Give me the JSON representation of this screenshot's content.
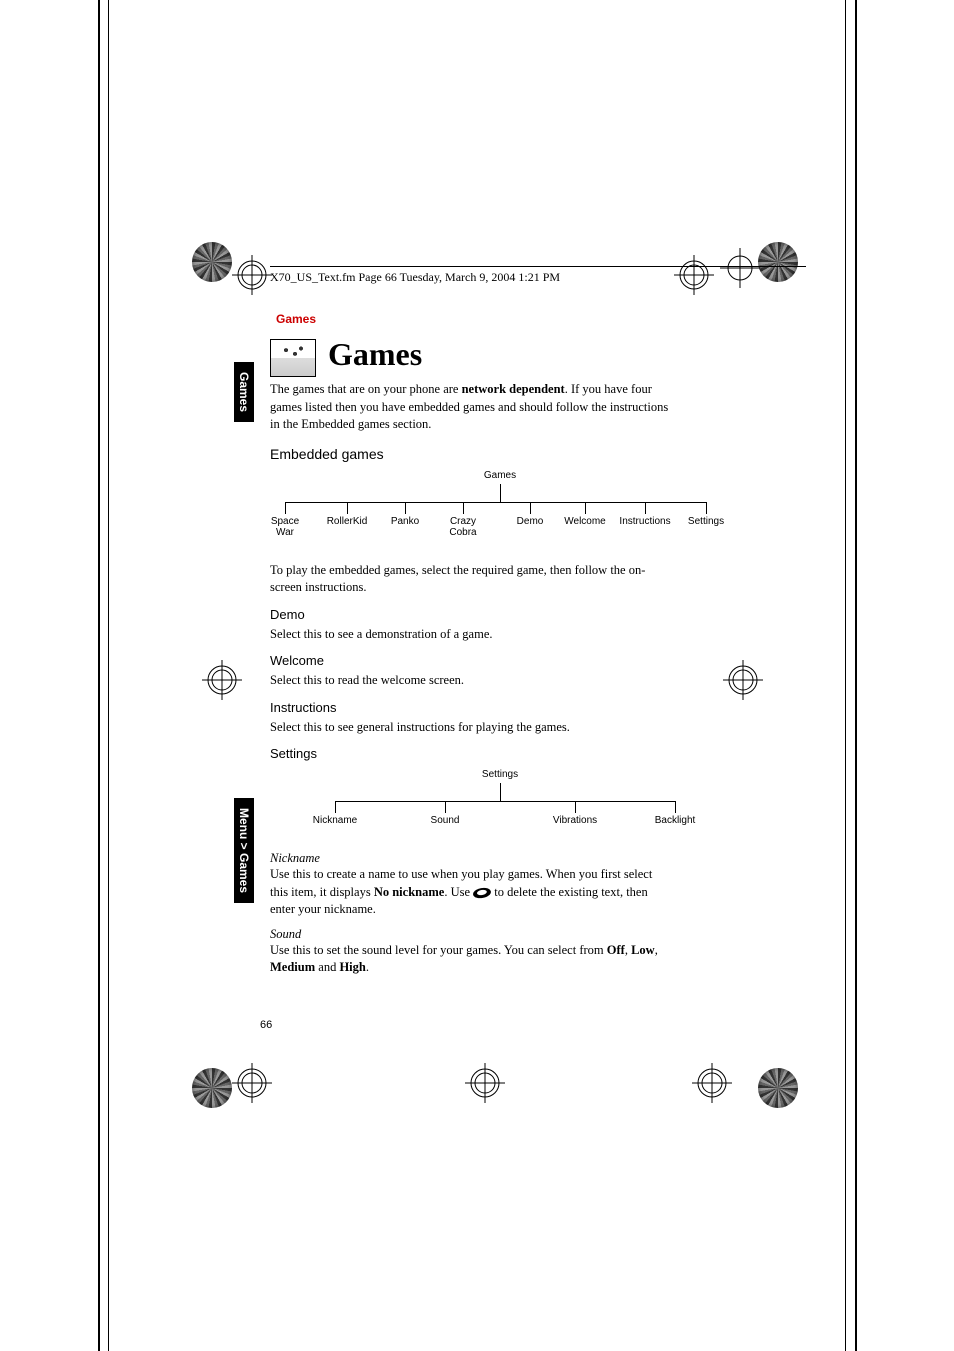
{
  "header": {
    "running_text": "X70_US_Text.fm  Page 66  Tuesday, March 9, 2004  1:21 PM",
    "section_label": "Games"
  },
  "sidebar": {
    "tab1": "Games",
    "tab2": "Menu > Games"
  },
  "chapter": {
    "title": "Games",
    "intro_line1": "The games that are on your phone are ",
    "intro_bold1": "network dependent",
    "intro_line1b": ". If you have four games listed then you have embedded games and should follow the instructions in the Embedded games section."
  },
  "embedded": {
    "heading": "Embedded games",
    "tree_root": "Games",
    "items": [
      "Space War",
      "RollerKid",
      "Panko",
      "Crazy Cobra",
      "Demo",
      "Welcome",
      "Instructions",
      "Settings"
    ],
    "body": "To play the embedded games, select the required game, then follow the on-screen instructions."
  },
  "demo": {
    "heading": "Demo",
    "body": "Select this to see a demonstration of a game."
  },
  "welcome": {
    "heading": "Welcome",
    "body": "Select this to read the welcome screen."
  },
  "instructions": {
    "heading": "Instructions",
    "body": "Select this to see general instructions for playing the games."
  },
  "settings": {
    "heading": "Settings",
    "tree_root": "Settings",
    "items": [
      "Nickname",
      "Sound",
      "Vibrations",
      "Backlight"
    ]
  },
  "nickname": {
    "heading": "Nickname",
    "body_a": "Use this to create a name to use when you play games. When you first select this item, it displays ",
    "body_bold": "No nickname",
    "body_b": ". Use ",
    "body_c": " to delete the existing text, then enter your nickname."
  },
  "sound": {
    "heading": "Sound",
    "body_a": "Use this to set the sound level for your games. You can select from ",
    "opt1": "Off",
    "sep": ", ",
    "opt2": "Low",
    "opt3": "Medium",
    "body_b": " and ",
    "opt4": "High",
    "body_c": "."
  },
  "page_number": "66",
  "tree1_positions": [
    15,
    77,
    135,
    193,
    260,
    315,
    375,
    436
  ],
  "tree2_positions": [
    65,
    175,
    305,
    405
  ],
  "colors": {
    "red": "#cc0000",
    "black": "#000000"
  }
}
